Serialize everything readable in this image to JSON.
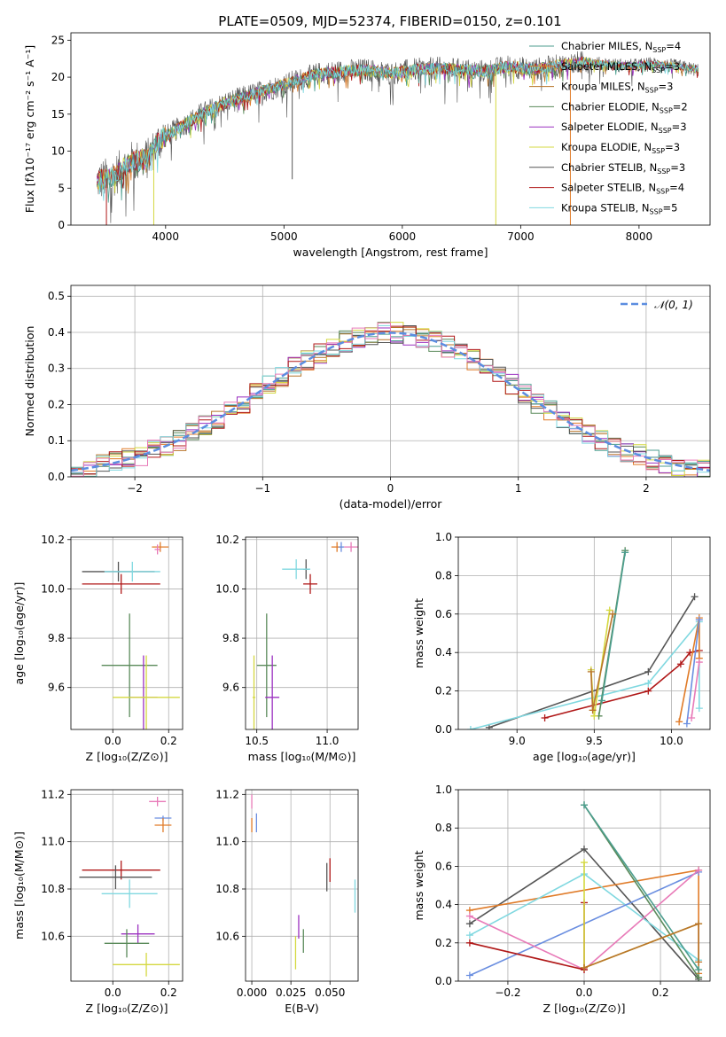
{
  "figure": {
    "title": "PLATE=0509, MJD=52374, FIBERID=0150, z=0.101"
  },
  "colors": {
    "chabrier_miles": "#4c9e8f",
    "salpeter_miles": "#e07b28",
    "kroupa_miles": "#b8742a",
    "chabrier_elodie": "#5a8a5a",
    "salpeter_elodie": "#9b30c0",
    "kroupa_elodie": "#d4d840",
    "chabrier_stelib": "#555555",
    "salpeter_stelib": "#b01818",
    "kroupa_stelib": "#80d8e0",
    "pink": "#e87ab8",
    "blue": "#6a8ee0",
    "gauss": "#5b8de0"
  },
  "chart_data": [
    {
      "id": "spectrum",
      "type": "line",
      "title": "PLATE=0509, MJD=52374, FIBERID=0150, z=0.101",
      "xlabel": "wavelength [Angstrom, rest frame]",
      "ylabel": "Flux [fλ10⁻¹⁷ erg cm⁻² s⁻¹ A⁻¹]",
      "xlim": [
        3200,
        8600
      ],
      "ylim": [
        0,
        26
      ],
      "xticks": [
        "4000",
        "5000",
        "6000",
        "7000",
        "8000"
      ],
      "yticks": [
        "0",
        "5",
        "10",
        "15",
        "20",
        "25"
      ],
      "legend_position": "right",
      "legend": [
        {
          "label": "Chabrier MILES, N",
          "sub": "SSP",
          "count": "=4",
          "color": "#4c9e8f"
        },
        {
          "label": "Salpeter MILES, N",
          "sub": "SSP",
          "count": "=3",
          "color": "#e07b28"
        },
        {
          "label": "Kroupa MILES, N",
          "sub": "SSP",
          "count": "=3",
          "color": "#b8742a"
        },
        {
          "label": "Chabrier ELODIE, N",
          "sub": "SSP",
          "count": "=2",
          "color": "#5a8a5a"
        },
        {
          "label": "Salpeter ELODIE, N",
          "sub": "SSP",
          "count": "=3",
          "color": "#9b30c0"
        },
        {
          "label": "Kroupa ELODIE, N",
          "sub": "SSP",
          "count": "=3",
          "color": "#d4d840"
        },
        {
          "label": "Chabrier STELIB, N",
          "sub": "SSP",
          "count": "=3",
          "color": "#555555"
        },
        {
          "label": "Salpeter STELIB, N",
          "sub": "SSP",
          "count": "=4",
          "color": "#b01818"
        },
        {
          "label": "Kroupa STELIB, N",
          "sub": "SSP",
          "count": "=5",
          "color": "#80d8e0"
        }
      ],
      "continuum": [
        [
          3420,
          6.0
        ],
        [
          3550,
          6.5
        ],
        [
          3700,
          8.5
        ],
        [
          3850,
          9.0
        ],
        [
          3950,
          11.5
        ],
        [
          4100,
          13.0
        ],
        [
          4300,
          15.0
        ],
        [
          4500,
          16.5
        ],
        [
          4700,
          17.5
        ],
        [
          4900,
          18.5
        ],
        [
          5100,
          19.5
        ],
        [
          5300,
          20.5
        ],
        [
          5500,
          20.8
        ],
        [
          5700,
          21.0
        ],
        [
          5900,
          20.5
        ],
        [
          6100,
          21.0
        ],
        [
          6300,
          21.2
        ],
        [
          6500,
          21.0
        ],
        [
          6700,
          20.8
        ],
        [
          6900,
          21.5
        ],
        [
          7100,
          21.0
        ],
        [
          7300,
          21.5
        ],
        [
          7500,
          22.0
        ],
        [
          7700,
          21.8
        ],
        [
          7900,
          21.5
        ],
        [
          8100,
          21.8
        ],
        [
          8300,
          21.5
        ],
        [
          8500,
          21.0
        ]
      ],
      "spikes": [
        {
          "x": 3500,
          "y": 0,
          "color": "#b01818"
        },
        {
          "x": 3900,
          "y": 0,
          "color": "#d4d840"
        },
        {
          "x": 5070,
          "y": 6.2,
          "color": "#555555"
        },
        {
          "x": 6790,
          "y": 0,
          "color": "#d4d840"
        },
        {
          "x": 7420,
          "y": 0,
          "color": "#e07b28"
        }
      ]
    },
    {
      "id": "residuals",
      "type": "line",
      "xlabel": "(data-model)/error",
      "ylabel": "Normed distribution",
      "xlim": [
        -2.5,
        2.5
      ],
      "ylim": [
        0,
        0.53
      ],
      "xticks": [
        "−2",
        "−1",
        "0",
        "1",
        "2"
      ],
      "yticks": [
        "0.0",
        "0.1",
        "0.2",
        "0.3",
        "0.4",
        "0.5"
      ],
      "legend_position": "top-right",
      "legend": [
        {
          "label": "𝒩(0, 1)",
          "color": "#5b8de0"
        }
      ],
      "bin_width": 0.1
    },
    {
      "id": "age_vs_Z",
      "type": "scatter",
      "xlabel": "Z [log₁₀(Z/Z⊙)]",
      "ylabel": "age  [log₁₀(age/yr)]",
      "xlim": [
        -0.15,
        0.25
      ],
      "ylim": [
        9.43,
        10.21
      ],
      "xticks": [
        "0.0",
        "0.2"
      ],
      "yticks": [
        "9.6",
        "9.8",
        "10.0",
        "10.2"
      ],
      "points": [
        {
          "x": 0.17,
          "y": 10.17,
          "ex": 0.03,
          "ey": 0.02,
          "color": "#e07b28"
        },
        {
          "x": 0.16,
          "y": 10.16,
          "ex": 0.01,
          "ey": 0.02,
          "color": "#e87ab8"
        },
        {
          "x": 0.02,
          "y": 10.07,
          "ex": 0.13,
          "ey": 0.04,
          "color": "#555555"
        },
        {
          "x": 0.07,
          "y": 10.07,
          "ex": 0.1,
          "ey": 0.04,
          "color": "#80d8e0"
        },
        {
          "x": 0.03,
          "y": 10.02,
          "ex": 0.14,
          "ey": 0.04,
          "color": "#b01818"
        },
        {
          "x": 0.06,
          "y": 9.69,
          "ex": 0.1,
          "ey": 0.21,
          "color": "#5a8a5a"
        },
        {
          "x": 0.11,
          "y": 9.56,
          "ex": 0.05,
          "ey": 0.17,
          "color": "#9b30c0"
        },
        {
          "x": 0.12,
          "y": 9.56,
          "ex": 0.12,
          "ey": 0.17,
          "color": "#d4d840"
        }
      ]
    },
    {
      "id": "age_vs_mass",
      "type": "scatter",
      "xlabel": "mass [log₁₀(M/M⊙)]",
      "ylabel": "",
      "xlim": [
        10.42,
        11.22
      ],
      "ylim": [
        9.43,
        10.21
      ],
      "xticks": [
        "10.5",
        "11.0"
      ],
      "yticks": [
        "9.6",
        "9.8",
        "10.0",
        "10.2"
      ],
      "points": [
        {
          "x": 11.07,
          "y": 10.17,
          "ex": 0.04,
          "ey": 0.02,
          "color": "#e07b28"
        },
        {
          "x": 11.17,
          "y": 10.17,
          "ex": 0.05,
          "ey": 0.02,
          "color": "#e87ab8"
        },
        {
          "x": 11.1,
          "y": 10.17,
          "ex": 0.02,
          "ey": 0.02,
          "color": "#6a8ee0"
        },
        {
          "x": 10.85,
          "y": 10.08,
          "ex": 0.02,
          "ey": 0.04,
          "color": "#555555"
        },
        {
          "x": 10.78,
          "y": 10.08,
          "ex": 0.1,
          "ey": 0.04,
          "color": "#80d8e0"
        },
        {
          "x": 10.88,
          "y": 10.02,
          "ex": 0.05,
          "ey": 0.04,
          "color": "#b01818"
        },
        {
          "x": 10.57,
          "y": 9.69,
          "ex": 0.07,
          "ey": 0.21,
          "color": "#5a8a5a"
        },
        {
          "x": 10.61,
          "y": 9.56,
          "ex": 0.05,
          "ey": 0.17,
          "color": "#9b30c0"
        },
        {
          "x": 10.48,
          "y": 9.56,
          "ex": 0.01,
          "ey": 0.17,
          "color": "#d4d840"
        }
      ]
    },
    {
      "id": "weight_vs_age",
      "type": "line",
      "xlabel": "age  [log₁₀(age/yr)]",
      "ylabel": "mass weight",
      "xlim": [
        8.62,
        10.25
      ],
      "ylim": [
        0,
        1.0
      ],
      "xticks": [
        "9.0",
        "9.5",
        "10.0"
      ],
      "yticks": [
        "0.0",
        "0.2",
        "0.4",
        "0.6",
        "0.8",
        "1.0"
      ],
      "series": [
        {
          "color": "#555555",
          "points": [
            [
              8.82,
              0.01
            ],
            [
              9.85,
              0.3
            ],
            [
              10.15,
              0.69
            ]
          ]
        },
        {
          "color": "#b01818",
          "points": [
            [
              9.18,
              0.06
            ],
            [
              9.85,
              0.2
            ],
            [
              10.06,
              0.34
            ],
            [
              10.12,
              0.4
            ],
            [
              10.18,
              0.41
            ]
          ]
        },
        {
          "color": "#80d8e0",
          "points": [
            [
              8.7,
              0.0
            ],
            [
              9.85,
              0.24
            ],
            [
              10.18,
              0.56
            ],
            [
              10.18,
              0.11
            ]
          ]
        },
        {
          "color": "#e07b28",
          "points": [
            [
              10.05,
              0.04
            ],
            [
              10.18,
              0.58
            ],
            [
              10.18,
              0.37
            ]
          ]
        },
        {
          "color": "#6a8ee0",
          "points": [
            [
              10.1,
              0.03
            ],
            [
              10.18,
              0.57
            ]
          ]
        },
        {
          "color": "#e87ab8",
          "points": [
            [
              10.13,
              0.06
            ],
            [
              10.18,
              0.35
            ]
          ]
        },
        {
          "color": "#5a8a5a",
          "points": [
            [
              9.53,
              0.07
            ],
            [
              9.7,
              0.93
            ]
          ]
        },
        {
          "color": "#4c9e8f",
          "points": [
            [
              9.55,
              0.15
            ],
            [
              9.7,
              0.92
            ]
          ]
        },
        {
          "color": "#d4d840",
          "points": [
            [
              9.48,
              0.31
            ],
            [
              9.5,
              0.07
            ],
            [
              9.6,
              0.62
            ]
          ]
        },
        {
          "color": "#b8742a",
          "points": [
            [
              9.48,
              0.3
            ],
            [
              9.49,
              0.1
            ],
            [
              9.62,
              0.6
            ]
          ]
        }
      ]
    },
    {
      "id": "mass_vs_Z",
      "type": "scatter",
      "xlabel": "Z [log₁₀(Z/Z⊙)]",
      "ylabel": "mass [log₁₀(M/M⊙)]",
      "xlim": [
        -0.15,
        0.25
      ],
      "ylim": [
        10.41,
        11.22
      ],
      "xticks": [
        "0.0",
        "0.2"
      ],
      "yticks": [
        "10.6",
        "10.8",
        "11.0",
        "11.2"
      ],
      "points": [
        {
          "x": 0.16,
          "y": 11.17,
          "ex": 0.03,
          "ey": 0.02,
          "color": "#e87ab8"
        },
        {
          "x": 0.18,
          "y": 11.1,
          "ex": 0.03,
          "ey": 0.01,
          "color": "#6a8ee0"
        },
        {
          "x": 0.18,
          "y": 11.07,
          "ex": 0.03,
          "ey": 0.03,
          "color": "#e07b28"
        },
        {
          "x": 0.03,
          "y": 10.88,
          "ex": 0.14,
          "ey": 0.04,
          "color": "#b01818"
        },
        {
          "x": 0.01,
          "y": 10.85,
          "ex": 0.13,
          "ey": 0.05,
          "color": "#555555"
        },
        {
          "x": 0.06,
          "y": 10.78,
          "ex": 0.1,
          "ey": 0.06,
          "color": "#80d8e0"
        },
        {
          "x": 0.09,
          "y": 10.61,
          "ex": 0.06,
          "ey": 0.04,
          "color": "#9b30c0"
        },
        {
          "x": 0.05,
          "y": 10.57,
          "ex": 0.08,
          "ey": 0.06,
          "color": "#5a8a5a"
        },
        {
          "x": 0.12,
          "y": 10.48,
          "ex": 0.12,
          "ey": 0.05,
          "color": "#d4d840"
        }
      ]
    },
    {
      "id": "mass_vs_ebv",
      "type": "scatter",
      "xlabel": "E(B-V)",
      "ylabel": "",
      "xlim": [
        -0.004,
        0.068
      ],
      "ylim": [
        10.41,
        11.22
      ],
      "xticks": [
        "0.000",
        "0.025",
        "0.050"
      ],
      "yticks": [
        "10.6",
        "10.8",
        "11.0",
        "11.2"
      ],
      "points": [
        {
          "x": 0.0,
          "y": 11.17,
          "ex": 0,
          "ey": 0.03,
          "color": "#e87ab8"
        },
        {
          "x": 0.003,
          "y": 11.08,
          "ex": 0,
          "ey": 0.04,
          "color": "#6a8ee0"
        },
        {
          "x": 0.0,
          "y": 11.07,
          "ex": 0,
          "ey": 0.03,
          "color": "#e07b28"
        },
        {
          "x": 0.05,
          "y": 10.88,
          "ex": 0,
          "ey": 0.05,
          "color": "#b01818"
        },
        {
          "x": 0.048,
          "y": 10.85,
          "ex": 0,
          "ey": 0.06,
          "color": "#555555"
        },
        {
          "x": 0.066,
          "y": 10.77,
          "ex": 0,
          "ey": 0.07,
          "color": "#80d8e0"
        },
        {
          "x": 0.03,
          "y": 10.64,
          "ex": 0,
          "ey": 0.05,
          "color": "#9b30c0"
        },
        {
          "x": 0.033,
          "y": 10.58,
          "ex": 0,
          "ey": 0.05,
          "color": "#5a8a5a"
        },
        {
          "x": 0.028,
          "y": 10.53,
          "ex": 0,
          "ey": 0.07,
          "color": "#d4d840"
        }
      ]
    },
    {
      "id": "weight_vs_Z",
      "type": "line",
      "xlabel": "Z [log₁₀(Z/Z⊙)]",
      "ylabel": "mass weight",
      "xlim": [
        -0.33,
        0.33
      ],
      "ylim": [
        0,
        1.0
      ],
      "xticks": [
        "−0.2",
        "0.0",
        "0.2"
      ],
      "yticks": [
        "0.0",
        "0.2",
        "0.4",
        "0.6",
        "0.8",
        "1.0"
      ],
      "series": [
        {
          "color": "#555555",
          "points": [
            [
              -0.3,
              0.3
            ],
            [
              0.0,
              0.69
            ],
            [
              0.3,
              0.01
            ]
          ]
        },
        {
          "color": "#e07b28",
          "points": [
            [
              -0.3,
              0.37
            ],
            [
              0.3,
              0.58
            ],
            [
              0.3,
              0.04
            ]
          ]
        },
        {
          "color": "#80d8e0",
          "points": [
            [
              -0.3,
              0.24
            ],
            [
              0.0,
              0.56
            ],
            [
              0.3,
              0.11
            ]
          ]
        },
        {
          "color": "#6a8ee0",
          "points": [
            [
              -0.3,
              0.03
            ],
            [
              0.3,
              0.57
            ]
          ]
        },
        {
          "color": "#e87ab8",
          "points": [
            [
              -0.3,
              0.34
            ],
            [
              0.0,
              0.06
            ],
            [
              0.3,
              0.58
            ]
          ]
        },
        {
          "color": "#b01818",
          "points": [
            [
              -0.3,
              0.2
            ],
            [
              0.0,
              0.06
            ],
            [
              0.0,
              0.41
            ]
          ]
        },
        {
          "color": "#5a8a5a",
          "points": [
            [
              0.0,
              0.92
            ],
            [
              0.3,
              0.02
            ]
          ]
        },
        {
          "color": "#4c9e8f",
          "points": [
            [
              0.0,
              0.92
            ],
            [
              0.3,
              0.06
            ]
          ]
        },
        {
          "color": "#d4d840",
          "points": [
            [
              0.0,
              0.62
            ],
            [
              0.0,
              0.07
            ],
            [
              0.3,
              0.3
            ]
          ]
        },
        {
          "color": "#b8742a",
          "points": [
            [
              0.0,
              0.07
            ],
            [
              0.3,
              0.3
            ],
            [
              0.3,
              0.1
            ]
          ]
        }
      ]
    }
  ]
}
